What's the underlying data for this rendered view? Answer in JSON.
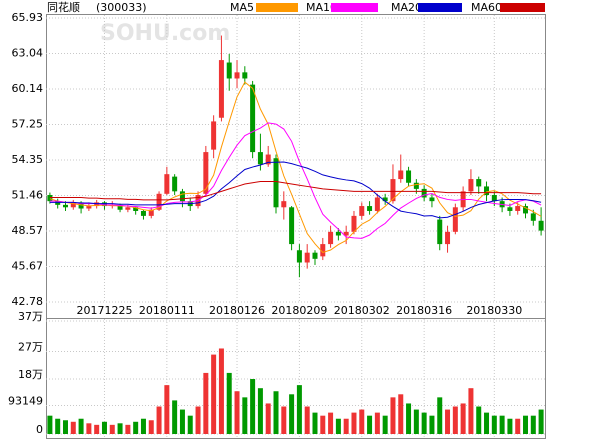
{
  "chart_data": {
    "type": "candlestick",
    "title": "同花顺",
    "subtitle": "(300033)",
    "watermark": "SOHU.com",
    "categories": [
      null,
      null,
      null,
      null,
      null,
      null,
      null,
      "20171225",
      null,
      null,
      null,
      null,
      null,
      null,
      null,
      "20180111",
      null,
      null,
      null,
      null,
      null,
      null,
      null,
      null,
      "20180126",
      null,
      null,
      null,
      null,
      null,
      null,
      null,
      "20180209",
      null,
      null,
      null,
      null,
      null,
      null,
      null,
      "20180302",
      null,
      null,
      null,
      null,
      null,
      null,
      null,
      "20180316",
      null,
      null,
      null,
      null,
      null,
      null,
      null,
      null,
      "20180330",
      null,
      null,
      null,
      null,
      null,
      null
    ],
    "open": [
      51.5,
      51.0,
      50.7,
      50.5,
      50.9,
      50.4,
      50.6,
      50.9,
      50.6,
      50.7,
      50.3,
      50.5,
      50.2,
      49.8,
      50.3,
      51.6,
      53.0,
      51.8,
      51.0,
      50.6,
      51.6,
      55.2,
      57.8,
      62.3,
      61.0,
      61.5,
      60.5,
      55.0,
      54.0,
      54.5,
      50.5,
      50.5,
      47.0,
      46.0,
      46.8,
      46.5,
      47.5,
      48.5,
      48.2,
      48.5,
      49.8,
      50.6,
      50.2,
      51.3,
      51.0,
      52.8,
      53.5,
      52.5,
      52.0,
      51.3,
      49.5,
      47.5,
      48.5,
      50.5,
      51.8,
      52.8,
      52.2,
      51.5,
      51.0,
      50.5,
      50.2,
      50.6,
      50.0,
      49.4
    ],
    "close": [
      51.0,
      50.7,
      50.5,
      50.9,
      50.4,
      50.6,
      50.9,
      50.6,
      50.7,
      50.3,
      50.5,
      50.2,
      49.8,
      50.3,
      51.6,
      53.2,
      51.8,
      51.0,
      50.6,
      51.5,
      55.0,
      57.5,
      62.5,
      61.0,
      61.5,
      61.0,
      55.0,
      54.0,
      54.8,
      50.5,
      51.0,
      47.5,
      46.0,
      46.8,
      46.3,
      47.5,
      48.5,
      48.2,
      48.5,
      49.8,
      50.6,
      50.2,
      51.3,
      51.0,
      52.8,
      53.5,
      52.5,
      52.0,
      51.3,
      51.0,
      47.5,
      48.5,
      50.5,
      51.8,
      52.8,
      52.2,
      51.5,
      51.0,
      50.5,
      50.2,
      50.6,
      50.0,
      49.4,
      48.6
    ],
    "high": [
      51.7,
      51.2,
      51.0,
      51.1,
      51.0,
      50.9,
      51.1,
      51.0,
      51.0,
      50.8,
      50.7,
      50.6,
      50.3,
      50.5,
      51.8,
      53.8,
      53.2,
      52.0,
      51.3,
      51.8,
      55.5,
      58.0,
      64.5,
      63.0,
      62.5,
      62.0,
      60.8,
      56.5,
      55.5,
      54.8,
      51.8,
      50.6,
      47.5,
      47.5,
      47.0,
      48.0,
      49.0,
      48.8,
      49.0,
      50.2,
      50.9,
      51.0,
      51.6,
      51.6,
      54.0,
      54.8,
      53.8,
      52.8,
      52.3,
      51.6,
      49.8,
      49.0,
      50.8,
      52.2,
      53.6,
      53.0,
      52.6,
      51.8,
      51.3,
      50.8,
      50.9,
      50.8,
      50.3,
      50.5
    ],
    "low": [
      50.8,
      50.4,
      50.2,
      50.3,
      50.0,
      50.2,
      50.4,
      50.3,
      50.4,
      50.1,
      50.1,
      49.9,
      49.5,
      49.6,
      50.2,
      51.5,
      51.5,
      50.5,
      50.2,
      50.4,
      51.4,
      54.5,
      57.5,
      60.0,
      60.2,
      60.5,
      54.5,
      53.5,
      53.8,
      50.0,
      49.5,
      47.0,
      44.8,
      45.5,
      45.8,
      46.2,
      47.2,
      47.8,
      47.5,
      48.3,
      49.5,
      49.9,
      50.0,
      50.7,
      50.8,
      52.5,
      52.2,
      51.6,
      51.0,
      50.5,
      47.0,
      46.8,
      48.3,
      50.2,
      51.5,
      51.6,
      51.0,
      50.6,
      50.1,
      49.8,
      49.9,
      49.6,
      49.0,
      48.2
    ],
    "volume": [
      60000,
      50000,
      45000,
      40000,
      50000,
      35000,
      30000,
      40000,
      30000,
      35000,
      30000,
      40000,
      50000,
      45000,
      90000,
      160000,
      110000,
      80000,
      60000,
      90000,
      200000,
      260000,
      280000,
      200000,
      140000,
      120000,
      180000,
      150000,
      100000,
      140000,
      90000,
      130000,
      160000,
      90000,
      70000,
      60000,
      70000,
      50000,
      50000,
      70000,
      80000,
      60000,
      70000,
      60000,
      120000,
      130000,
      100000,
      80000,
      70000,
      60000,
      120000,
      80000,
      90000,
      100000,
      150000,
      90000,
      70000,
      60000,
      60000,
      50000,
      50000,
      60000,
      60000,
      80000
    ],
    "up_color": "#ee3333",
    "down_color": "#009900",
    "ma": [
      {
        "name": "MA5",
        "color": "#ff9900",
        "values": [
          51.2,
          51.0,
          50.9,
          50.8,
          50.7,
          50.62,
          50.66,
          50.68,
          50.64,
          50.62,
          50.6,
          50.46,
          50.3,
          50.22,
          50.48,
          51.02,
          51.34,
          51.58,
          51.64,
          51.62,
          51.98,
          53.12,
          55.42,
          57.5,
          59.5,
          60.7,
          60.2,
          58.5,
          57.26,
          55.06,
          53.06,
          51.56,
          49.96,
          48.36,
          47.52,
          46.82,
          47.02,
          47.46,
          47.8,
          48.5,
          49.12,
          49.46,
          50.08,
          50.58,
          51.18,
          51.76,
          52.22,
          52.36,
          52.42,
          52.06,
          50.86,
          50.06,
          49.76,
          49.86,
          50.22,
          51.16,
          51.76,
          51.86,
          51.6,
          51.08,
          50.76,
          50.46,
          50.14,
          49.76
        ]
      },
      {
        "name": "MA10",
        "color": "#ff00ff",
        "values": [
          51.0,
          51.0,
          50.9,
          50.9,
          50.8,
          50.8,
          50.8,
          50.7,
          50.7,
          50.66,
          50.61,
          50.56,
          50.49,
          50.43,
          50.55,
          50.81,
          50.9,
          50.94,
          50.93,
          51.05,
          51.5,
          52.23,
          53.5,
          54.57,
          55.56,
          56.34,
          56.66,
          56.96,
          57.38,
          57.28,
          56.88,
          55.88,
          54.23,
          52.81,
          51.29,
          49.94,
          49.29,
          48.71,
          48.08,
          48.01,
          47.97,
          48.24,
          48.77,
          49.19,
          49.84,
          50.44,
          50.84,
          51.22,
          51.5,
          51.62,
          51.31,
          51.14,
          51.06,
          51.14,
          51.14,
          51.01,
          50.91,
          50.81,
          50.73,
          50.65,
          50.96,
          51.11,
          51.0,
          50.68
        ]
      },
      {
        "name": "MA20",
        "color": "#0000cc",
        "values": [
          50.9,
          50.9,
          50.9,
          50.9,
          50.85,
          50.85,
          50.8,
          50.8,
          50.8,
          50.75,
          50.75,
          50.7,
          50.7,
          50.7,
          50.7,
          50.75,
          50.8,
          50.8,
          50.8,
          50.86,
          51.06,
          51.4,
          52.0,
          52.5,
          53.06,
          53.58,
          53.78,
          53.95,
          54.16,
          54.17,
          54.19,
          54.06,
          53.87,
          53.69,
          53.43,
          53.14,
          52.98,
          52.84,
          52.73,
          52.65,
          52.43,
          52.06,
          51.5,
          51.0,
          50.57,
          50.19,
          50.07,
          49.97,
          49.79,
          49.82,
          49.64,
          49.69,
          49.92,
          50.17,
          50.49,
          50.73,
          50.88,
          51.02,
          51.12,
          51.14,
          51.14,
          51.13,
          51.03,
          50.91
        ]
      },
      {
        "name": "MA60",
        "color": "#cc0000",
        "values": [
          51.3,
          51.3,
          51.3,
          51.3,
          51.3,
          51.25,
          51.25,
          51.2,
          51.2,
          51.2,
          51.15,
          51.15,
          51.1,
          51.1,
          51.1,
          51.1,
          51.15,
          51.2,
          51.25,
          51.3,
          51.4,
          51.6,
          51.8,
          52.0,
          52.2,
          52.4,
          52.5,
          52.6,
          52.6,
          52.6,
          52.5,
          52.4,
          52.3,
          52.2,
          52.1,
          52.0,
          51.95,
          51.9,
          51.85,
          51.8,
          51.8,
          51.8,
          51.8,
          51.8,
          51.8,
          51.8,
          51.8,
          51.8,
          51.8,
          51.8,
          51.75,
          51.7,
          51.7,
          51.7,
          51.7,
          51.7,
          51.7,
          51.7,
          51.7,
          51.7,
          51.7,
          51.65,
          51.6,
          51.6
        ]
      }
    ],
    "ylim": [
      42.78,
      65.93
    ],
    "yticks": [
      42.78,
      45.67,
      48.57,
      51.46,
      54.35,
      57.25,
      60.14,
      63.04,
      65.93
    ],
    "volume_ylim": [
      0,
      370000
    ],
    "volume_yticks": [
      0,
      93149,
      {
        "value": 180000,
        "label": "18万"
      },
      {
        "value": 270000,
        "label": "27万"
      },
      {
        "value": 370000,
        "label": "37万"
      }
    ],
    "grid": true
  }
}
